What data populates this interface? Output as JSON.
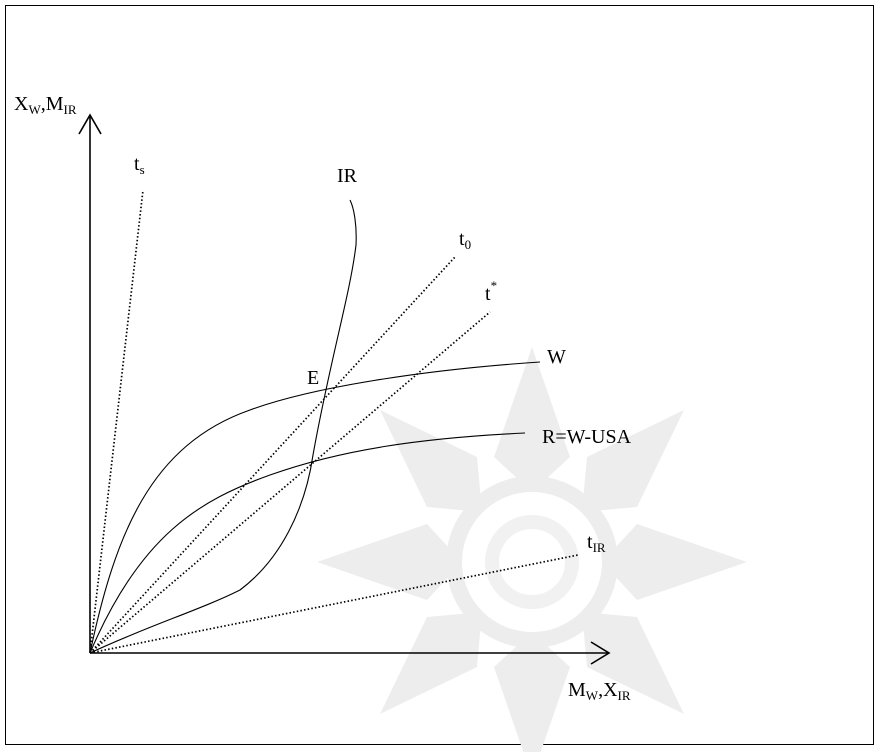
{
  "diagram": {
    "y_axis_label": {
      "main1": "X",
      "sub1": "W",
      "sep": ",",
      "main2": "M",
      "sub2": "IR"
    },
    "x_axis_label": {
      "main1": "M",
      "sub1": "W",
      "sep": ",",
      "main2": "X",
      "sub2": "IR"
    },
    "rays": [
      {
        "id": "ts",
        "main": "t",
        "sub": "s",
        "sup": ""
      },
      {
        "id": "t0",
        "main": "t",
        "sub": "0",
        "sup": ""
      },
      {
        "id": "tstar",
        "main": "t",
        "sub": "",
        "sup": "*"
      },
      {
        "id": "tIR",
        "main": "t",
        "sub": "IR",
        "sup": ""
      }
    ],
    "curves": [
      {
        "id": "IR",
        "label": "IR"
      },
      {
        "id": "W",
        "label": "W"
      },
      {
        "id": "R",
        "label": "R=W-USA"
      }
    ],
    "points": [
      {
        "id": "E",
        "label": "E"
      }
    ],
    "colors": {
      "ink": "#000000",
      "watermark": "#ededed",
      "background": "#ffffff"
    }
  }
}
